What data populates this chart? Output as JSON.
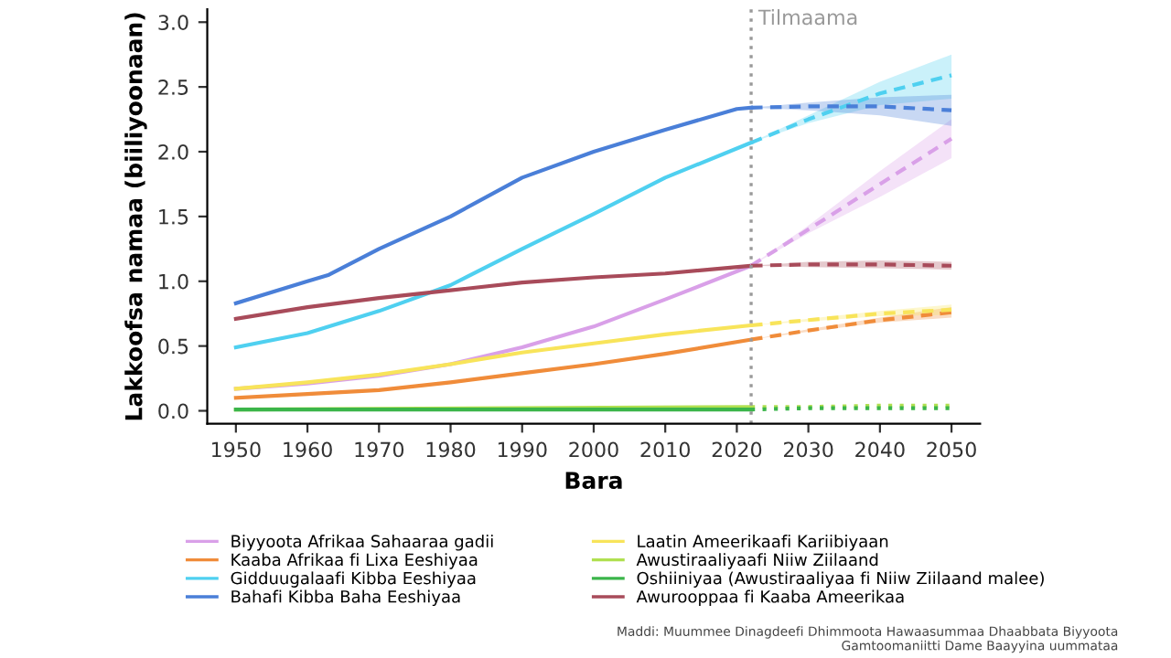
{
  "chart_data": {
    "type": "line",
    "xlabel": "Bara",
    "ylabel": "Lakkoofsa namaa (biiliyoonaan)",
    "xlim": [
      1946,
      2054
    ],
    "xticks": [
      1950,
      1960,
      1970,
      1980,
      1990,
      2000,
      2010,
      2020,
      2030,
      2040,
      2050
    ],
    "ylim": [
      -0.1,
      3.1
    ],
    "yticks": [
      {
        "value": 0,
        "label": "0.0"
      },
      {
        "value": 0.5,
        "label": "0.5"
      },
      {
        "value": 1,
        "label": "1.0"
      },
      {
        "value": 1.5,
        "label": "1.5"
      },
      {
        "value": 2,
        "label": "2.0"
      },
      {
        "value": 2.5,
        "label": "2.5"
      },
      {
        "value": 3,
        "label": "3.0"
      }
    ],
    "grid": false,
    "legend": "bottom",
    "marker": "none",
    "ref_lines": [
      {
        "axis": "x",
        "value": 2022,
        "label": "Tilmaama",
        "color": "#999999",
        "line_style": "dotted"
      }
    ],
    "annotations": [
      "Maddi: Muummee Dinagdeefi Dhimmoota Hawaasummaa Dhaabbata Biyyoota\nGamtoomaniitti Dame Baayyina uummataa"
    ],
    "series": [
      {
        "name": "Biyyoota Afrikaa Sahaaraa gadii",
        "color": "#d9a0e8",
        "line_style": "solid",
        "x": [
          1950,
          1960,
          1970,
          1980,
          1990,
          2000,
          2010,
          2022
        ],
        "values": [
          0.17,
          0.21,
          0.27,
          0.36,
          0.49,
          0.65,
          0.86,
          1.12
        ]
      },
      {
        "name": "Kaaba Afrikaa fi Lixa Eeshiyaa",
        "color": "#f08c3a",
        "line_style": "solid",
        "x": [
          1950,
          1960,
          1970,
          1980,
          1990,
          2000,
          2010,
          2022
        ],
        "values": [
          0.1,
          0.13,
          0.16,
          0.22,
          0.29,
          0.36,
          0.44,
          0.55
        ]
      },
      {
        "name": "Gidduugalaafi Kibba Eeshiyaa",
        "color": "#4fd0f0",
        "line_style": "solid",
        "x": [
          1950,
          1960,
          1970,
          1980,
          1990,
          2000,
          2010,
          2022
        ],
        "values": [
          0.49,
          0.6,
          0.77,
          0.97,
          1.25,
          1.52,
          1.8,
          2.07
        ]
      },
      {
        "name": "Bahafi Kibba Baha Eeshiyaa",
        "color": "#4a7fd8",
        "line_style": "solid",
        "x": [
          1950,
          1960,
          1963,
          1970,
          1980,
          1990,
          2000,
          2010,
          2020,
          2022
        ],
        "values": [
          0.83,
          1.0,
          1.05,
          1.25,
          1.5,
          1.8,
          2.0,
          2.17,
          2.33,
          2.34
        ]
      },
      {
        "name": "Laatin Ameerikaafi Kariibiyaan",
        "color": "#f8e45a",
        "line_style": "solid",
        "x": [
          1950,
          1960,
          1970,
          1980,
          1990,
          2000,
          2010,
          2022
        ],
        "values": [
          0.17,
          0.22,
          0.28,
          0.36,
          0.45,
          0.52,
          0.59,
          0.66
        ]
      },
      {
        "name": "Awustiraaliyaafi Niiw Ziilaand",
        "color": "#b0e050",
        "line_style": "solid",
        "x": [
          1950,
          2022
        ],
        "values": [
          0.01,
          0.03
        ]
      },
      {
        "name": "Oshiiniyaa (Awustiraaliyaa fi Niiw Ziilaand malee)",
        "color": "#3bb54a",
        "line_style": "solid",
        "x": [
          1950,
          2022
        ],
        "values": [
          0.01,
          0.01
        ]
      },
      {
        "name": "Awurooppaa fi Kaaba Ameerikaa",
        "color": "#a84b5a",
        "line_style": "solid",
        "x": [
          1950,
          1960,
          1970,
          1980,
          1990,
          2000,
          2010,
          2022
        ],
        "values": [
          0.71,
          0.8,
          0.87,
          0.93,
          0.99,
          1.03,
          1.06,
          1.12
        ]
      },
      {
        "color": "#d9a0e8",
        "line_style": "dashed",
        "x": [
          2022,
          2030,
          2040,
          2050
        ],
        "values": [
          1.12,
          1.4,
          1.75,
          2.1
        ],
        "lower": [
          1.12,
          1.37,
          1.65,
          1.95
        ],
        "upper": [
          1.12,
          1.43,
          1.85,
          2.25
        ]
      },
      {
        "color": "#f08c3a",
        "line_style": "dashed",
        "x": [
          2022,
          2030,
          2040,
          2050
        ],
        "values": [
          0.55,
          0.62,
          0.7,
          0.76
        ],
        "lower": [
          0.55,
          0.61,
          0.68,
          0.72
        ],
        "upper": [
          0.55,
          0.63,
          0.72,
          0.8
        ]
      },
      {
        "color": "#4fd0f0",
        "line_style": "dashed",
        "x": [
          2022,
          2030,
          2040,
          2050
        ],
        "values": [
          2.07,
          2.25,
          2.45,
          2.59
        ],
        "lower": [
          2.07,
          2.22,
          2.36,
          2.41
        ],
        "upper": [
          2.07,
          2.28,
          2.54,
          2.75
        ]
      },
      {
        "color": "#4a7fd8",
        "line_style": "dashed",
        "x": [
          2022,
          2030,
          2040,
          2050
        ],
        "values": [
          2.34,
          2.35,
          2.35,
          2.32
        ],
        "lower": [
          2.34,
          2.32,
          2.28,
          2.2
        ],
        "upper": [
          2.34,
          2.38,
          2.42,
          2.44
        ]
      },
      {
        "color": "#f8e45a",
        "line_style": "dashed",
        "x": [
          2022,
          2030,
          2040,
          2050
        ],
        "values": [
          0.66,
          0.7,
          0.75,
          0.78
        ],
        "lower": [
          0.66,
          0.69,
          0.73,
          0.74
        ],
        "upper": [
          0.66,
          0.71,
          0.77,
          0.82
        ]
      },
      {
        "color": "#b0e050",
        "line_style": "dotted",
        "x": [
          2022,
          2030,
          2040,
          2050
        ],
        "values": [
          0.03,
          0.03,
          0.04,
          0.04
        ]
      },
      {
        "color": "#3bb54a",
        "line_style": "dotted",
        "x": [
          2022,
          2030,
          2040,
          2050
        ],
        "values": [
          0.01,
          0.02,
          0.02,
          0.02
        ]
      },
      {
        "color": "#a84b5a",
        "line_style": "dashed",
        "x": [
          2022,
          2030,
          2040,
          2050
        ],
        "values": [
          1.12,
          1.13,
          1.13,
          1.12
        ],
        "lower": [
          1.12,
          1.11,
          1.1,
          1.09
        ],
        "upper": [
          1.12,
          1.15,
          1.16,
          1.15
        ]
      }
    ]
  }
}
